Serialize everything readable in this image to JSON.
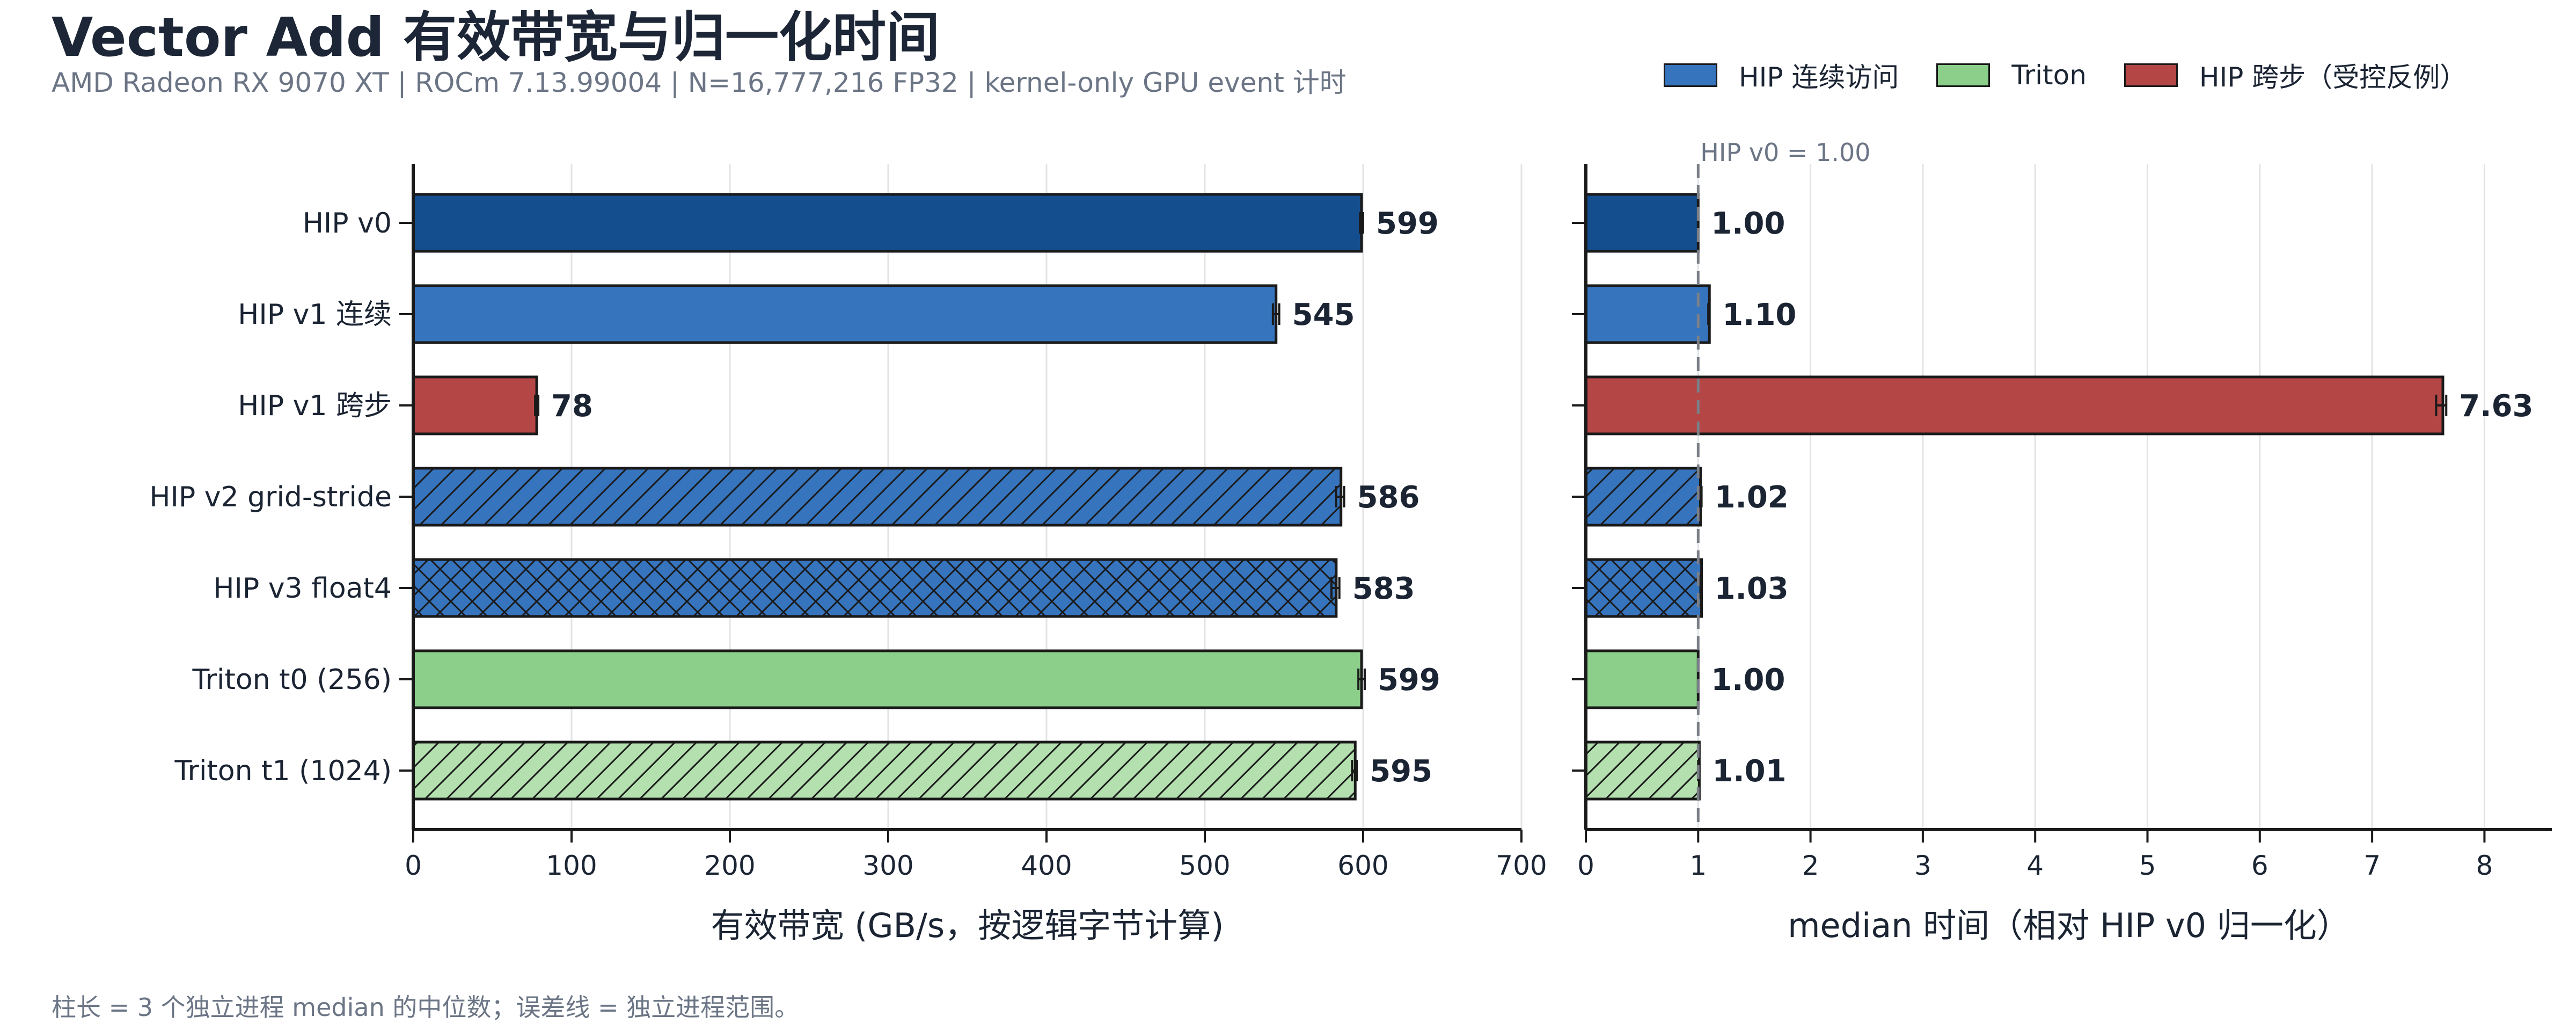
{
  "title": "Vector Add 有效带宽与归一化时间",
  "subtitle": "AMD Radeon RX 9070 XT | ROCm 7.13.99004 | N=16,777,216 FP32 | kernel-only GPU event 计时",
  "footer_note": "柱长 = 3 个独立进程 median 的中位数；误差线 = 独立进程范围。",
  "legend": [
    {
      "label": "HIP 连续访问",
      "color": "#3674be"
    },
    {
      "label": "Triton",
      "color": "#8ccf8a"
    },
    {
      "label": "HIP 跨步（受控反例）",
      "color": "#b54646"
    }
  ],
  "chart_data": [
    {
      "type": "bar",
      "orientation": "horizontal",
      "categories": [
        "HIP v0",
        "HIP v1 连续",
        "HIP v1 跨步",
        "HIP v2 grid-stride",
        "HIP v3 float4",
        "Triton t0 (256)",
        "Triton t1 (1024)"
      ],
      "values": [
        599,
        545,
        78,
        586,
        583,
        599,
        595
      ],
      "value_labels": [
        "599",
        "545",
        "78",
        "586",
        "583",
        "599",
        "595"
      ],
      "errors": [
        [
          598,
          600
        ],
        [
          543,
          547
        ],
        [
          77,
          79
        ],
        [
          583,
          588
        ],
        [
          580,
          585
        ],
        [
          597,
          601
        ],
        [
          593,
          596
        ]
      ],
      "colors": [
        "#144e8f",
        "#3674be",
        "#b54646",
        "#3674be",
        "#3674be",
        "#8ccf8a",
        "#b3e0ae"
      ],
      "hatch": [
        "",
        "",
        "",
        "diagonal",
        "crosshatch",
        "",
        "diagonal"
      ],
      "xlabel": "有效带宽 (GB/s，按逻辑字节计算)",
      "xlim": [
        0,
        700
      ],
      "xticks": [
        0,
        100,
        200,
        300,
        400,
        500,
        600,
        700
      ],
      "grid": "vertical"
    },
    {
      "type": "bar",
      "orientation": "horizontal",
      "categories": [
        "HIP v0",
        "HIP v1 连续",
        "HIP v1 跨步",
        "HIP v2 grid-stride",
        "HIP v3 float4",
        "Triton t0 (256)",
        "Triton t1 (1024)"
      ],
      "values": [
        1.0,
        1.1,
        7.63,
        1.02,
        1.03,
        1.0,
        1.01
      ],
      "value_labels": [
        "1.00",
        "1.10",
        "7.63",
        "1.02",
        "1.03",
        "1.00",
        "1.01"
      ],
      "errors": [
        [
          1.0,
          1.0
        ],
        [
          1.09,
          1.1
        ],
        [
          7.57,
          7.66
        ],
        [
          1.02,
          1.03
        ],
        [
          1.02,
          1.03
        ],
        [
          1.0,
          1.0
        ],
        [
          1.0,
          1.01
        ]
      ],
      "colors": [
        "#144e8f",
        "#3674be",
        "#b54646",
        "#3674be",
        "#3674be",
        "#8ccf8a",
        "#b3e0ae"
      ],
      "hatch": [
        "",
        "",
        "",
        "diagonal",
        "crosshatch",
        "",
        "diagonal"
      ],
      "xlabel": "median 时间（相对 HIP v0 归一化）",
      "xlim": [
        0,
        8.6
      ],
      "xticks": [
        0,
        1,
        2,
        3,
        4,
        5,
        6,
        7,
        8
      ],
      "reference_line": {
        "x": 1,
        "label": "HIP v0 = 1.00"
      },
      "grid": "vertical"
    }
  ]
}
